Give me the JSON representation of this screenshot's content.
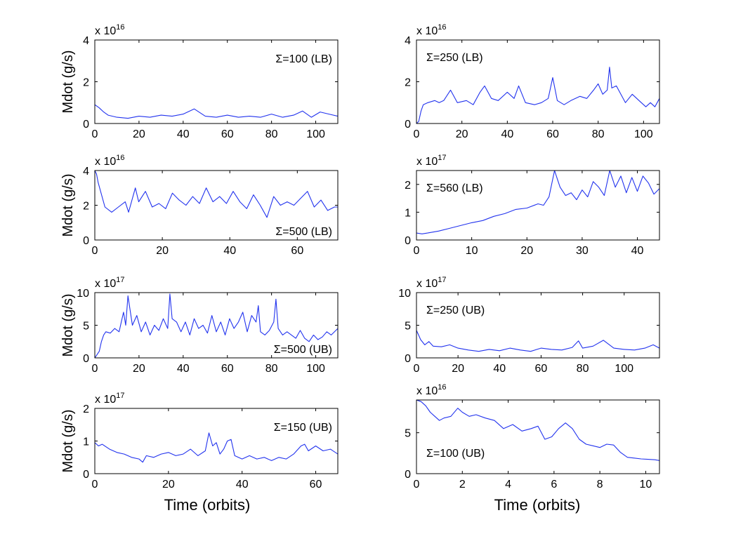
{
  "figure": {
    "xlabel": "Time (orbits)",
    "ylabel": "Mdot (g/s)"
  },
  "colors": {
    "line": "#2233ee",
    "axis": "#000000",
    "background": "#ffffff"
  },
  "chart_data": [
    {
      "type": "line",
      "title": "",
      "annotation": "Σ=100 (LB)",
      "annotation_pos": "top-right",
      "xlabel": "",
      "ylabel": "Mdot (g/s)",
      "xlim": [
        0,
        110
      ],
      "ylim": [
        0,
        4
      ],
      "xticks": [
        0,
        20,
        40,
        60,
        80,
        100
      ],
      "yticks": [
        0,
        2,
        4
      ],
      "multiplier": "x 10",
      "multiplier_exp": "16",
      "series": [
        {
          "name": "Mdot",
          "x": [
            0,
            2,
            4,
            6,
            10,
            15,
            20,
            25,
            30,
            35,
            40,
            45,
            50,
            55,
            60,
            65,
            70,
            75,
            80,
            85,
            90,
            94,
            98,
            102,
            106,
            110
          ],
          "y": [
            0.9,
            0.75,
            0.55,
            0.4,
            0.3,
            0.25,
            0.35,
            0.3,
            0.4,
            0.35,
            0.45,
            0.7,
            0.35,
            0.3,
            0.4,
            0.3,
            0.35,
            0.3,
            0.45,
            0.3,
            0.4,
            0.6,
            0.3,
            0.55,
            0.45,
            0.35
          ]
        }
      ]
    },
    {
      "type": "line",
      "title": "",
      "annotation": "Σ=250 (LB)",
      "annotation_pos": "top-left",
      "xlabel": "",
      "ylabel": "",
      "xlim": [
        0,
        107
      ],
      "ylim": [
        0,
        4
      ],
      "xticks": [
        0,
        20,
        40,
        60,
        80,
        100
      ],
      "yticks": [
        0,
        2,
        4
      ],
      "multiplier": "x 10",
      "multiplier_exp": "16",
      "series": [
        {
          "name": "Mdot",
          "x": [
            0,
            1,
            2,
            3,
            5,
            8,
            10,
            12,
            15,
            18,
            22,
            25,
            28,
            30,
            33,
            36,
            40,
            43,
            45,
            48,
            52,
            55,
            58,
            60,
            62,
            65,
            68,
            72,
            75,
            78,
            80,
            82,
            84,
            85,
            86,
            88,
            92,
            95,
            98,
            101,
            103,
            105,
            107
          ],
          "y": [
            0,
            0.1,
            0.6,
            0.9,
            1.0,
            1.1,
            1.0,
            1.1,
            1.6,
            1.0,
            1.1,
            0.9,
            1.5,
            1.8,
            1.2,
            1.1,
            1.5,
            1.2,
            1.8,
            1.0,
            0.9,
            1.0,
            1.2,
            2.2,
            1.1,
            0.9,
            1.1,
            1.3,
            1.2,
            1.6,
            1.9,
            1.4,
            1.6,
            2.7,
            1.7,
            1.8,
            1.0,
            1.4,
            1.1,
            0.8,
            1.0,
            0.8,
            1.2
          ]
        }
      ]
    },
    {
      "type": "line",
      "title": "",
      "annotation": "Σ=500 (LB)",
      "annotation_pos": "bottom-right",
      "xlabel": "",
      "ylabel": "Mdot (g/s)",
      "xlim": [
        0,
        72
      ],
      "ylim": [
        0,
        4
      ],
      "xticks": [
        0,
        20,
        40,
        60
      ],
      "yticks": [
        0,
        2,
        4
      ],
      "multiplier": "x 10",
      "multiplier_exp": "16",
      "series": [
        {
          "name": "Mdot",
          "x": [
            0,
            0.5,
            1,
            2,
            3,
            5,
            7,
            9,
            10,
            12,
            13,
            15,
            17,
            19,
            21,
            23,
            25,
            27,
            29,
            31,
            33,
            35,
            37,
            39,
            41,
            43,
            45,
            47,
            49,
            51,
            53,
            55,
            57,
            59,
            61,
            63,
            65,
            67,
            69,
            71,
            72
          ],
          "y": [
            4.0,
            3.8,
            3.3,
            2.6,
            1.9,
            1.6,
            1.9,
            2.2,
            1.6,
            3.0,
            2.2,
            2.8,
            1.9,
            2.1,
            1.8,
            2.7,
            2.3,
            2.0,
            2.5,
            2.1,
            3.0,
            2.2,
            2.5,
            2.1,
            2.8,
            2.2,
            1.8,
            2.6,
            2.0,
            1.3,
            2.5,
            2.0,
            2.2,
            2.0,
            2.4,
            2.8,
            1.9,
            2.3,
            1.7,
            1.9,
            1.9
          ]
        }
      ]
    },
    {
      "type": "line",
      "title": "",
      "annotation": "Σ=560 (LB)",
      "annotation_pos": "top-left",
      "xlabel": "",
      "ylabel": "",
      "xlim": [
        0,
        44
      ],
      "ylim": [
        0,
        2.5
      ],
      "xticks": [
        0,
        10,
        20,
        30,
        40
      ],
      "yticks": [
        0,
        1,
        2
      ],
      "multiplier": "x 10",
      "multiplier_exp": "17",
      "series": [
        {
          "name": "Mdot",
          "x": [
            0,
            1,
            2,
            4,
            6,
            8,
            10,
            12,
            14,
            16,
            18,
            20,
            22,
            23,
            24,
            25,
            25.5,
            26,
            27,
            28,
            29,
            30,
            31,
            32,
            33,
            34,
            35,
            36,
            37,
            38,
            39,
            40,
            41,
            42,
            43,
            44
          ],
          "y": [
            0.25,
            0.22,
            0.25,
            0.32,
            0.42,
            0.52,
            0.62,
            0.7,
            0.85,
            0.95,
            1.1,
            1.15,
            1.3,
            1.25,
            1.55,
            2.5,
            2.2,
            1.9,
            1.6,
            1.7,
            1.45,
            1.8,
            1.55,
            2.1,
            1.9,
            1.6,
            2.5,
            1.9,
            2.3,
            1.7,
            2.25,
            1.75,
            2.3,
            2.05,
            1.65,
            1.85
          ]
        }
      ]
    },
    {
      "type": "line",
      "title": "",
      "annotation": "Σ=500 (UB)",
      "annotation_pos": "bottom-right",
      "xlabel": "",
      "ylabel": "Mdot (g/s)",
      "xlim": [
        0,
        110
      ],
      "ylim": [
        0,
        10
      ],
      "xticks": [
        0,
        20,
        40,
        60,
        80,
        100
      ],
      "yticks": [
        0,
        5,
        10
      ],
      "multiplier": "x 10",
      "multiplier_exp": "17",
      "series": [
        {
          "name": "Mdot",
          "x": [
            0,
            1,
            2,
            3,
            4,
            5,
            7,
            9,
            11,
            12,
            13,
            14,
            15,
            17,
            19,
            21,
            23,
            25,
            27,
            29,
            31,
            33,
            34,
            35,
            37,
            39,
            41,
            43,
            45,
            47,
            49,
            51,
            53,
            55,
            57,
            59,
            61,
            63,
            65,
            67,
            69,
            71,
            73,
            74,
            75,
            77,
            79,
            81,
            82,
            83,
            85,
            87,
            89,
            91,
            93,
            95,
            97,
            99,
            101,
            103,
            105,
            107,
            110
          ],
          "y": [
            0,
            0.5,
            1.0,
            2.5,
            3.5,
            4.0,
            3.8,
            4.5,
            4.0,
            5.5,
            7.0,
            5.0,
            9.5,
            5.0,
            6.5,
            4.0,
            5.5,
            3.5,
            5.0,
            4.2,
            6.0,
            4.5,
            9.8,
            6.0,
            5.5,
            4.0,
            5.5,
            3.5,
            6.0,
            4.5,
            5.0,
            3.8,
            6.5,
            4.0,
            5.5,
            3.5,
            6.0,
            4.5,
            5.5,
            7.0,
            4.0,
            6.5,
            5.5,
            8.0,
            4.0,
            3.5,
            4.2,
            5.5,
            9.0,
            4.5,
            3.5,
            4.0,
            3.5,
            3.0,
            4.2,
            3.0,
            2.5,
            3.5,
            2.8,
            3.2,
            4.0,
            3.5,
            4.5
          ]
        }
      ]
    },
    {
      "type": "line",
      "title": "",
      "annotation": "Σ=250 (UB)",
      "annotation_pos": "top-left",
      "xlabel": "",
      "ylabel": "",
      "xlim": [
        0,
        117
      ],
      "ylim": [
        0,
        10
      ],
      "xticks": [
        0,
        20,
        40,
        60,
        80,
        100
      ],
      "yticks": [
        0,
        5,
        10
      ],
      "multiplier": "x 10",
      "multiplier_exp": "17",
      "series": [
        {
          "name": "Mdot",
          "x": [
            0,
            1,
            2,
            4,
            6,
            8,
            12,
            16,
            20,
            25,
            30,
            35,
            40,
            45,
            50,
            55,
            60,
            65,
            70,
            75,
            78,
            80,
            85,
            90,
            95,
            100,
            105,
            110,
            114,
            117
          ],
          "y": [
            4.2,
            3.5,
            2.8,
            2.0,
            2.5,
            1.8,
            1.7,
            2.0,
            1.5,
            1.2,
            1.0,
            1.3,
            1.1,
            1.5,
            1.2,
            1.0,
            1.5,
            1.3,
            1.2,
            1.6,
            2.6,
            1.5,
            1.8,
            2.7,
            1.5,
            1.3,
            1.2,
            1.5,
            2.0,
            1.5
          ]
        }
      ]
    },
    {
      "type": "line",
      "title": "",
      "annotation": "Σ=150 (UB)",
      "annotation_pos": "top-right",
      "xlabel": "Time (orbits)",
      "ylabel": "Mdot (g/s)",
      "xlim": [
        0,
        66
      ],
      "ylim": [
        0,
        2
      ],
      "xticks": [
        0,
        20,
        40,
        60
      ],
      "yticks": [
        0,
        1,
        2
      ],
      "multiplier": "x 10",
      "multiplier_exp": "17",
      "series": [
        {
          "name": "Mdot",
          "x": [
            0,
            1,
            2,
            4,
            6,
            8,
            10,
            12,
            13,
            14,
            16,
            18,
            20,
            22,
            24,
            26,
            28,
            30,
            31,
            32,
            33,
            34,
            35,
            36,
            37,
            38,
            40,
            42,
            44,
            46,
            48,
            50,
            52,
            54,
            56,
            57,
            58,
            60,
            62,
            64,
            66
          ],
          "y": [
            0.95,
            0.85,
            0.9,
            0.75,
            0.65,
            0.6,
            0.5,
            0.45,
            0.35,
            0.55,
            0.5,
            0.6,
            0.65,
            0.55,
            0.6,
            0.75,
            0.55,
            0.7,
            1.25,
            0.85,
            0.95,
            0.6,
            0.75,
            1.0,
            1.05,
            0.55,
            0.45,
            0.55,
            0.45,
            0.5,
            0.4,
            0.5,
            0.45,
            0.6,
            0.85,
            0.9,
            0.7,
            0.85,
            0.7,
            0.75,
            0.6
          ]
        }
      ]
    },
    {
      "type": "line",
      "title": "",
      "annotation": "Σ=100 (UB)",
      "annotation_pos": "bottom-left",
      "xlabel": "Time (orbits)",
      "ylabel": "",
      "xlim": [
        0,
        10.6
      ],
      "ylim": [
        0,
        9
      ],
      "xticks": [
        0,
        2,
        4,
        6,
        8,
        10
      ],
      "yticks": [
        0,
        5
      ],
      "multiplier": "x 10",
      "multiplier_exp": "16",
      "series": [
        {
          "name": "Mdot",
          "x": [
            0,
            0.2,
            0.4,
            0.6,
            0.8,
            1.0,
            1.2,
            1.5,
            1.8,
            2.0,
            2.3,
            2.6,
            3.0,
            3.4,
            3.8,
            4.2,
            4.6,
            5.0,
            5.3,
            5.6,
            5.9,
            6.2,
            6.5,
            6.8,
            7.1,
            7.4,
            7.7,
            8.0,
            8.3,
            8.6,
            8.9,
            9.2,
            9.5,
            9.8,
            10.1,
            10.4,
            10.6
          ],
          "y": [
            9.0,
            8.8,
            8.3,
            7.5,
            7.0,
            6.5,
            6.8,
            7.0,
            8.0,
            7.5,
            7.0,
            7.2,
            6.8,
            6.5,
            5.5,
            6.0,
            5.2,
            5.5,
            5.8,
            4.2,
            4.5,
            5.5,
            6.2,
            5.5,
            4.2,
            3.6,
            3.4,
            3.2,
            3.6,
            3.5,
            2.6,
            2.0,
            1.9,
            1.8,
            1.75,
            1.7,
            1.6
          ]
        }
      ]
    }
  ]
}
